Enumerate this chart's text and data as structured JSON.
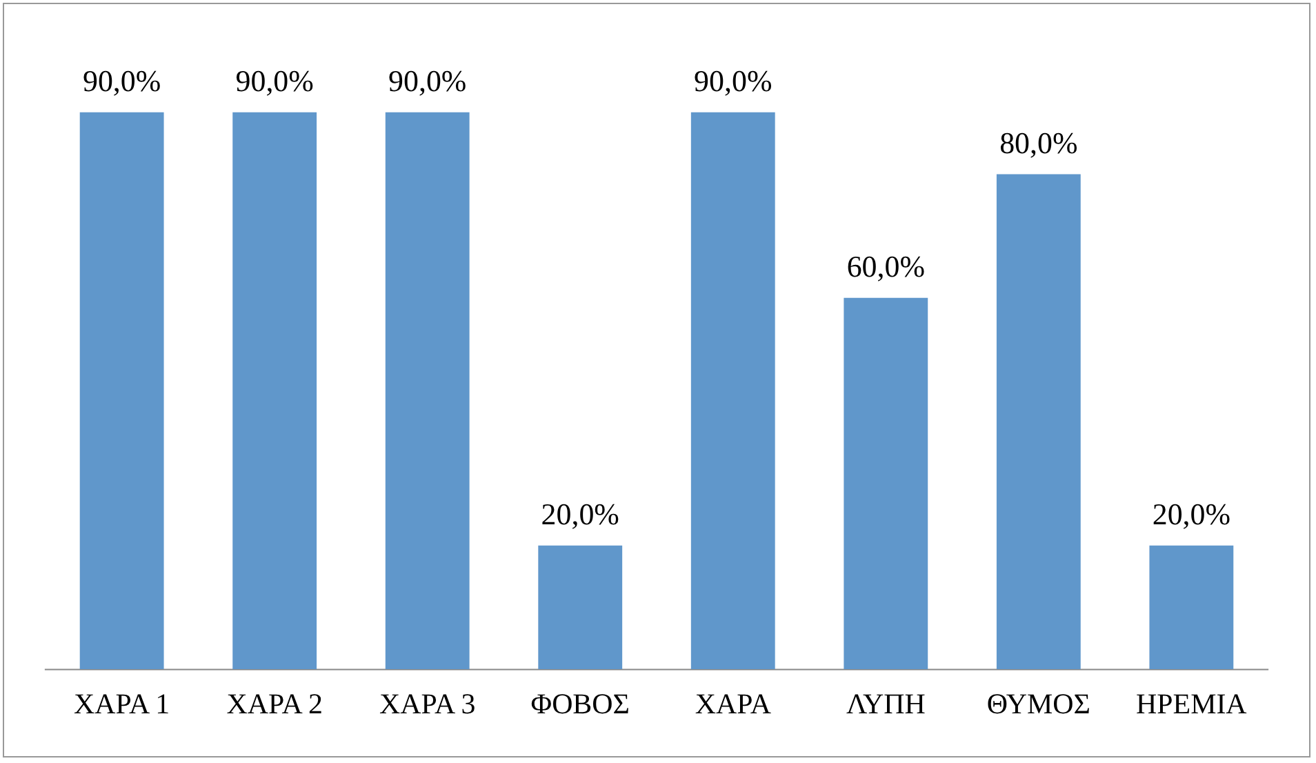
{
  "chart_data": {
    "type": "bar",
    "categories": [
      "ΧΑΡΑ 1",
      "ΧΑΡΑ 2",
      "ΧΑΡΑ 3",
      "ΦΟΒΟΣ",
      "ΧΑΡΑ",
      "ΛΥΠΗ",
      "ΘΥΜΟΣ",
      "ΗΡΕΜΙΑ"
    ],
    "values": [
      90,
      90,
      90,
      20,
      90,
      60,
      80,
      20
    ],
    "value_labels": [
      "90,0%",
      "90,0%",
      "90,0%",
      "20,0%",
      "90,0%",
      "60,0%",
      "80,0%",
      "20,0%"
    ],
    "color": "#6097cb",
    "legend": false
  }
}
